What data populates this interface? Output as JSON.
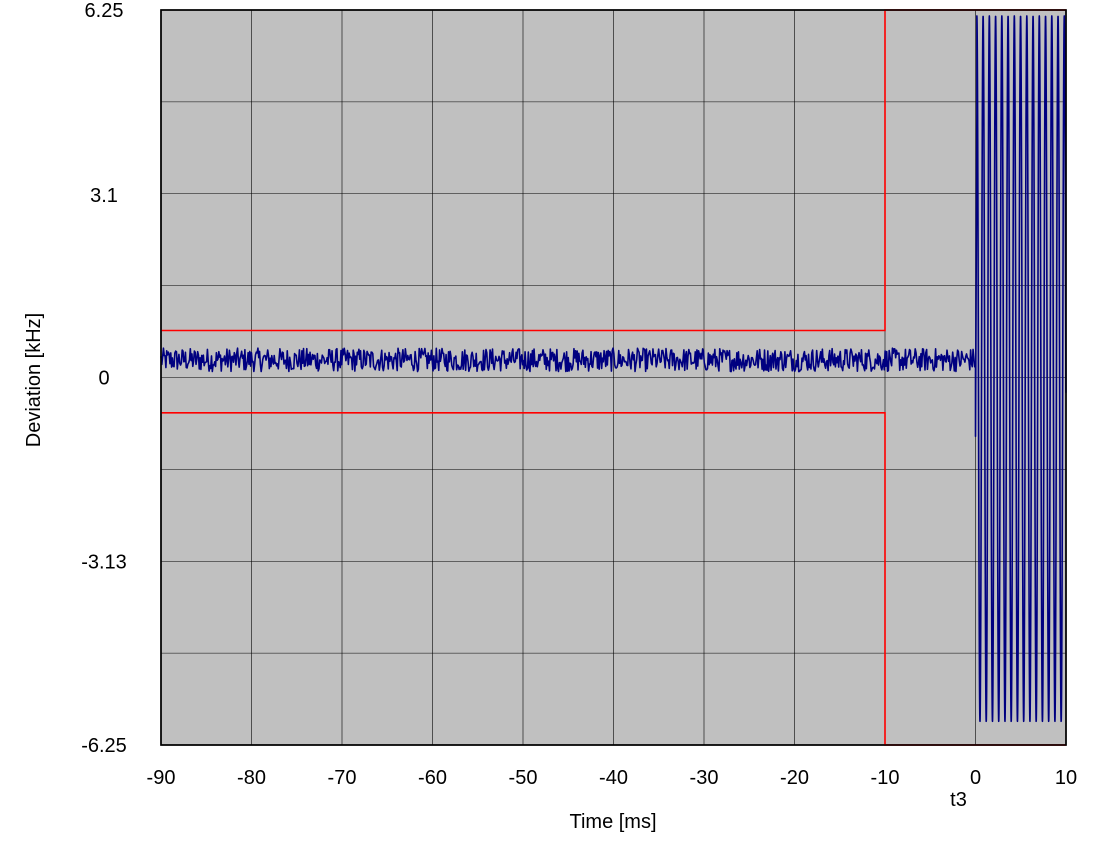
{
  "chart_data": {
    "type": "line",
    "title": "",
    "xlabel": "Time [ms]",
    "ylabel": "Deviation [kHz]",
    "xlim": [
      -90,
      10
    ],
    "ylim": [
      -6.25,
      6.25
    ],
    "x_ticks": [
      -90,
      -80,
      -70,
      -60,
      -50,
      -40,
      -30,
      -20,
      -10,
      0,
      10
    ],
    "x_tick_labels": [
      "-90",
      "-80",
      "-70",
      "-60",
      "-50",
      "-40",
      "-30",
      "-20",
      "-10",
      "0",
      "10"
    ],
    "y_ticks": [
      6.25,
      3.1,
      0,
      -3.13,
      -6.25
    ],
    "y_tick_labels": [
      "6.25",
      "3.1",
      "0",
      "-3.13",
      "-6.25"
    ],
    "marker_label": "t3",
    "marker_x": 0,
    "grid": true,
    "background_color": "#c0c0c0",
    "series": [
      {
        "color": "#000080",
        "segments": [
          {
            "x_start": -90,
            "x_end": 0,
            "pattern": "noise",
            "center": 0.3,
            "amplitude": 0.2
          },
          {
            "x_start": 0,
            "x_end": 0.15,
            "pattern": "onset",
            "values": [
              -1.0,
              4.5
            ]
          },
          {
            "x_start": 0.15,
            "x_end": 10,
            "pattern": "sine",
            "period_ms": 0.69,
            "amplitude": 6.0,
            "offset": 0.15
          }
        ]
      }
    ],
    "limit_lines": {
      "color": "#ff0000",
      "upper": [
        [
          -90,
          0.8
        ],
        [
          -10,
          0.8
        ],
        [
          -10,
          6.25
        ],
        [
          10,
          6.25
        ]
      ],
      "lower": [
        [
          -90,
          -0.6
        ],
        [
          -10,
          -0.6
        ],
        [
          -10,
          -6.25
        ],
        [
          10,
          -6.25
        ]
      ]
    }
  }
}
